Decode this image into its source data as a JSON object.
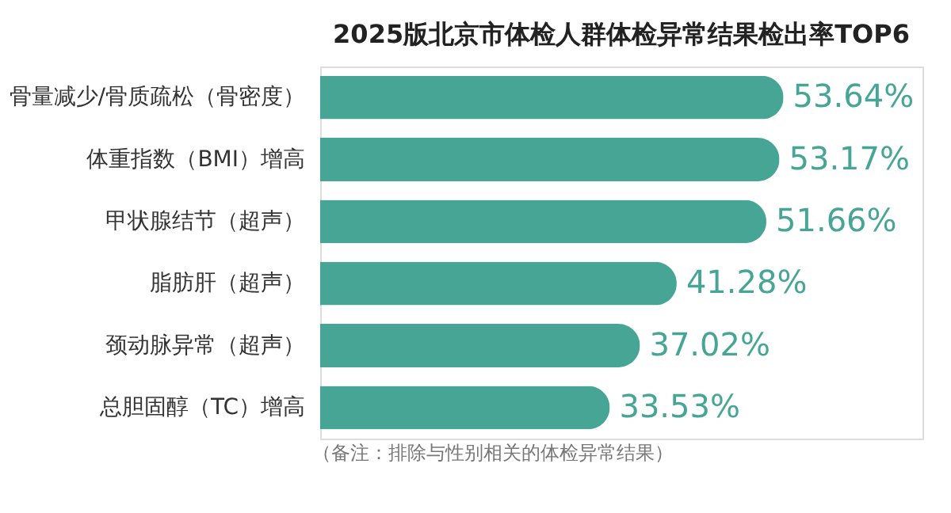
{
  "chart_data": {
    "type": "bar",
    "orientation": "horizontal",
    "title": "2025版北京市体检人群体检异常结果检出率TOP6",
    "categories": [
      "骨量减少/骨质疏松（骨密度）",
      "体重指数（BMI）增高",
      "甲状腺结节（超声）",
      "脂肪肝（超声）",
      "颈动脉异常（超声）",
      "总胆固醇（TC）增高"
    ],
    "values": [
      53.64,
      53.17,
      51.66,
      41.28,
      37.02,
      33.53
    ],
    "value_labels": [
      "53.64%",
      "53.17%",
      "51.66%",
      "41.28%",
      "37.02%",
      "33.53%"
    ],
    "color": "#47a596",
    "annotations": [
      "（备注：排除与性别相关的体检异常结果）"
    ]
  }
}
